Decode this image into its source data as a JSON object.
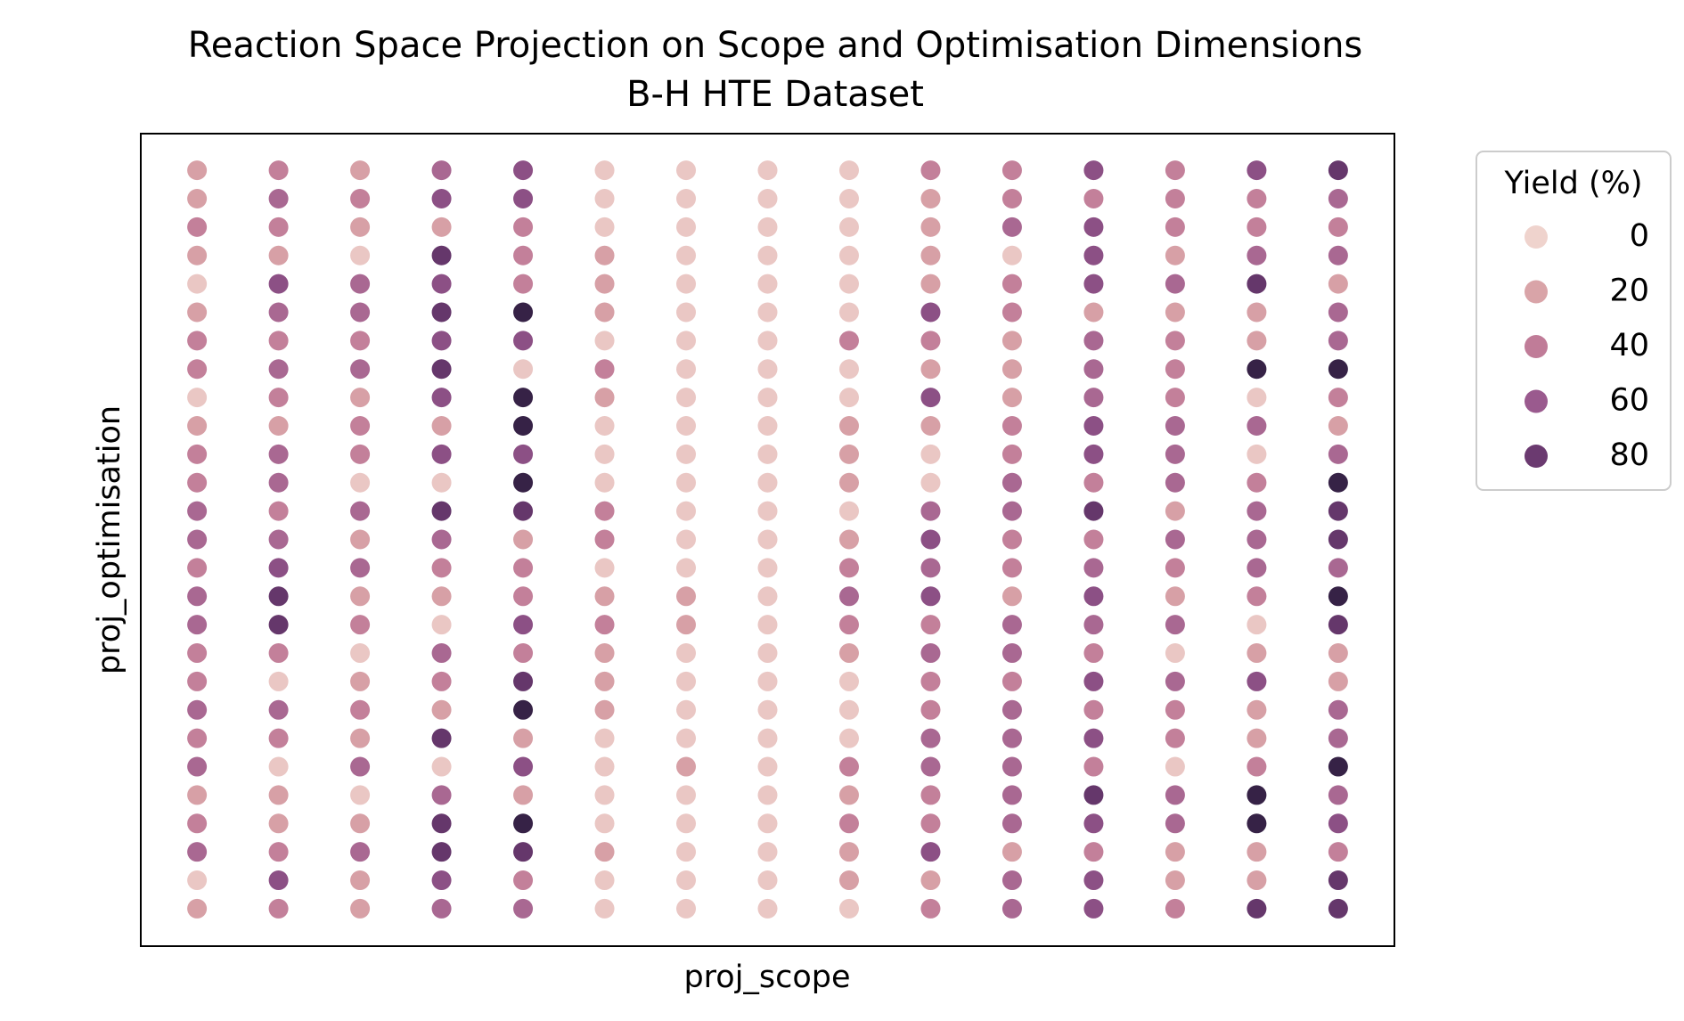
{
  "chart_data": {
    "type": "scatter",
    "title": "Reaction Space Projection on Scope and Optimisation Dimensions",
    "subtitle": "B-H HTE Dataset",
    "x_label": "proj_scope",
    "y_label": "proj_optimisation",
    "xlim": [
      0.31,
      15.69
    ],
    "ylim": [
      -0.32,
      28.29
    ],
    "grid": false,
    "legend": {
      "title": "Yield (%)",
      "position": "outside-upper-right",
      "entries": [
        0,
        20,
        40,
        60,
        80
      ]
    },
    "hue_range": [
      0,
      100
    ],
    "palette": [
      "#efd3cd",
      "#d9a4a8",
      "#c07c98",
      "#9a5a8e",
      "#6b3a70",
      "#2d1e3e"
    ],
    "x": [
      1,
      1,
      1,
      1,
      1,
      1,
      1,
      1,
      1,
      1,
      1,
      1,
      1,
      1,
      1,
      1,
      1,
      1,
      1,
      1,
      1,
      1,
      1,
      1,
      1,
      1,
      1,
      2,
      2,
      2,
      2,
      2,
      2,
      2,
      2,
      2,
      2,
      2,
      2,
      2,
      2,
      2,
      2,
      2,
      2,
      2,
      2,
      2,
      2,
      2,
      2,
      2,
      2,
      2,
      3,
      3,
      3,
      3,
      3,
      3,
      3,
      3,
      3,
      3,
      3,
      3,
      3,
      3,
      3,
      3,
      3,
      3,
      3,
      3,
      3,
      3,
      3,
      3,
      3,
      3,
      3,
      4,
      4,
      4,
      4,
      4,
      4,
      4,
      4,
      4,
      4,
      4,
      4,
      4,
      4,
      4,
      4,
      4,
      4,
      4,
      4,
      4,
      4,
      4,
      4,
      4,
      4,
      4,
      5,
      5,
      5,
      5,
      5,
      5,
      5,
      5,
      5,
      5,
      5,
      5,
      5,
      5,
      5,
      5,
      5,
      5,
      5,
      5,
      5,
      5,
      5,
      5,
      5,
      5,
      5,
      6,
      6,
      6,
      6,
      6,
      6,
      6,
      6,
      6,
      6,
      6,
      6,
      6,
      6,
      6,
      6,
      6,
      6,
      6,
      6,
      6,
      6,
      6,
      6,
      6,
      6,
      6,
      7,
      7,
      7,
      7,
      7,
      7,
      7,
      7,
      7,
      7,
      7,
      7,
      7,
      7,
      7,
      7,
      7,
      7,
      7,
      7,
      7,
      7,
      7,
      7,
      7,
      7,
      7,
      8,
      8,
      8,
      8,
      8,
      8,
      8,
      8,
      8,
      8,
      8,
      8,
      8,
      8,
      8,
      8,
      8,
      8,
      8,
      8,
      8,
      8,
      8,
      8,
      8,
      8,
      8,
      9,
      9,
      9,
      9,
      9,
      9,
      9,
      9,
      9,
      9,
      9,
      9,
      9,
      9,
      9,
      9,
      9,
      9,
      9,
      9,
      9,
      9,
      9,
      9,
      9,
      9,
      9,
      10,
      10,
      10,
      10,
      10,
      10,
      10,
      10,
      10,
      10,
      10,
      10,
      10,
      10,
      10,
      10,
      10,
      10,
      10,
      10,
      10,
      10,
      10,
      10,
      10,
      10,
      10,
      11,
      11,
      11,
      11,
      11,
      11,
      11,
      11,
      11,
      11,
      11,
      11,
      11,
      11,
      11,
      11,
      11,
      11,
      11,
      11,
      11,
      11,
      11,
      11,
      11,
      11,
      11,
      12,
      12,
      12,
      12,
      12,
      12,
      12,
      12,
      12,
      12,
      12,
      12,
      12,
      12,
      12,
      12,
      12,
      12,
      12,
      12,
      12,
      12,
      12,
      12,
      12,
      12,
      12,
      13,
      13,
      13,
      13,
      13,
      13,
      13,
      13,
      13,
      13,
      13,
      13,
      13,
      13,
      13,
      13,
      13,
      13,
      13,
      13,
      13,
      13,
      13,
      13,
      13,
      13,
      13,
      14,
      14,
      14,
      14,
      14,
      14,
      14,
      14,
      14,
      14,
      14,
      14,
      14,
      14,
      14,
      14,
      14,
      14,
      14,
      14,
      14,
      14,
      14,
      14,
      14,
      14,
      14,
      15,
      15,
      15,
      15,
      15,
      15,
      15,
      15,
      15,
      15,
      15,
      15,
      15,
      15,
      15,
      15,
      15,
      15,
      15,
      15,
      15,
      15,
      15,
      15,
      15,
      15,
      15
    ],
    "y": [
      27,
      26,
      25,
      24,
      23,
      22,
      21,
      20,
      19,
      18,
      17,
      16,
      15,
      14,
      13,
      12,
      11,
      10,
      9,
      8,
      7,
      6,
      5,
      4,
      3,
      2,
      1,
      27,
      26,
      25,
      24,
      23,
      22,
      21,
      20,
      19,
      18,
      17,
      16,
      15,
      14,
      13,
      12,
      11,
      10,
      9,
      8,
      7,
      6,
      5,
      4,
      3,
      2,
      1,
      27,
      26,
      25,
      24,
      23,
      22,
      21,
      20,
      19,
      18,
      17,
      16,
      15,
      14,
      13,
      12,
      11,
      10,
      9,
      8,
      7,
      6,
      5,
      4,
      3,
      2,
      1,
      27,
      26,
      25,
      24,
      23,
      22,
      21,
      20,
      19,
      18,
      17,
      16,
      15,
      14,
      13,
      12,
      11,
      10,
      9,
      8,
      7,
      6,
      5,
      4,
      3,
      2,
      1,
      27,
      26,
      25,
      24,
      23,
      22,
      21,
      20,
      19,
      18,
      17,
      16,
      15,
      14,
      13,
      12,
      11,
      10,
      9,
      8,
      7,
      6,
      5,
      4,
      3,
      2,
      1,
      27,
      26,
      25,
      24,
      23,
      22,
      21,
      20,
      19,
      18,
      17,
      16,
      15,
      14,
      13,
      12,
      11,
      10,
      9,
      8,
      7,
      6,
      5,
      4,
      3,
      2,
      1,
      27,
      26,
      25,
      24,
      23,
      22,
      21,
      20,
      19,
      18,
      17,
      16,
      15,
      14,
      13,
      12,
      11,
      10,
      9,
      8,
      7,
      6,
      5,
      4,
      3,
      2,
      1,
      27,
      26,
      25,
      24,
      23,
      22,
      21,
      20,
      19,
      18,
      17,
      16,
      15,
      14,
      13,
      12,
      11,
      10,
      9,
      8,
      7,
      6,
      5,
      4,
      3,
      2,
      1,
      27,
      26,
      25,
      24,
      23,
      22,
      21,
      20,
      19,
      18,
      17,
      16,
      15,
      14,
      13,
      12,
      11,
      10,
      9,
      8,
      7,
      6,
      5,
      4,
      3,
      2,
      1,
      27,
      26,
      25,
      24,
      23,
      22,
      21,
      20,
      19,
      18,
      17,
      16,
      15,
      14,
      13,
      12,
      11,
      10,
      9,
      8,
      7,
      6,
      5,
      4,
      3,
      2,
      1,
      27,
      26,
      25,
      24,
      23,
      22,
      21,
      20,
      19,
      18,
      17,
      16,
      15,
      14,
      13,
      12,
      11,
      10,
      9,
      8,
      7,
      6,
      5,
      4,
      3,
      2,
      1,
      27,
      26,
      25,
      24,
      23,
      22,
      21,
      20,
      19,
      18,
      17,
      16,
      15,
      14,
      13,
      12,
      11,
      10,
      9,
      8,
      7,
      6,
      5,
      4,
      3,
      2,
      1,
      27,
      26,
      25,
      24,
      23,
      22,
      21,
      20,
      19,
      18,
      17,
      16,
      15,
      14,
      13,
      12,
      11,
      10,
      9,
      8,
      7,
      6,
      5,
      4,
      3,
      2,
      1,
      27,
      26,
      25,
      24,
      23,
      22,
      21,
      20,
      19,
      18,
      17,
      16,
      15,
      14,
      13,
      12,
      11,
      10,
      9,
      8,
      7,
      6,
      5,
      4,
      3,
      2,
      1,
      27,
      26,
      25,
      24,
      23,
      22,
      21,
      20,
      19,
      18,
      17,
      16,
      15,
      14,
      13,
      12,
      11,
      10,
      9,
      8,
      7,
      6,
      5,
      4,
      3,
      2,
      1
    ],
    "hue": [
      22,
      22,
      38,
      22,
      5,
      22,
      38,
      38,
      5,
      22,
      38,
      38,
      52,
      52,
      38,
      52,
      52,
      38,
      38,
      52,
      38,
      52,
      22,
      38,
      52,
      5,
      22,
      38,
      52,
      38,
      22,
      66,
      52,
      38,
      52,
      38,
      22,
      52,
      52,
      38,
      52,
      66,
      82,
      82,
      38,
      5,
      52,
      38,
      5,
      22,
      22,
      38,
      66,
      38,
      22,
      38,
      22,
      5,
      52,
      52,
      38,
      52,
      22,
      38,
      38,
      5,
      52,
      22,
      52,
      22,
      38,
      5,
      22,
      38,
      22,
      52,
      5,
      22,
      52,
      22,
      22,
      52,
      66,
      22,
      82,
      66,
      82,
      66,
      82,
      66,
      22,
      66,
      5,
      82,
      52,
      38,
      22,
      5,
      52,
      38,
      22,
      82,
      5,
      52,
      82,
      82,
      66,
      52,
      66,
      66,
      38,
      38,
      38,
      97,
      66,
      5,
      97,
      97,
      66,
      97,
      82,
      22,
      38,
      38,
      66,
      38,
      82,
      97,
      22,
      66,
      22,
      97,
      82,
      38,
      52,
      5,
      5,
      5,
      22,
      22,
      22,
      5,
      38,
      22,
      5,
      5,
      5,
      38,
      38,
      5,
      22,
      38,
      22,
      22,
      22,
      5,
      5,
      5,
      5,
      22,
      5,
      5,
      5,
      5,
      5,
      5,
      5,
      5,
      5,
      5,
      5,
      5,
      5,
      5,
      5,
      5,
      5,
      22,
      22,
      5,
      5,
      5,
      5,
      22,
      5,
      5,
      5,
      5,
      5,
      5,
      5,
      5,
      5,
      5,
      5,
      5,
      5,
      5,
      5,
      5,
      5,
      5,
      5,
      5,
      5,
      5,
      5,
      5,
      5,
      5,
      5,
      5,
      5,
      5,
      5,
      5,
      5,
      5,
      5,
      5,
      5,
      5,
      38,
      5,
      5,
      22,
      22,
      22,
      5,
      22,
      38,
      52,
      38,
      22,
      5,
      5,
      5,
      38,
      22,
      38,
      22,
      22,
      5,
      38,
      22,
      22,
      22,
      22,
      66,
      38,
      22,
      66,
      22,
      5,
      5,
      52,
      66,
      52,
      66,
      38,
      52,
      38,
      38,
      52,
      52,
      38,
      38,
      66,
      22,
      38,
      38,
      38,
      52,
      5,
      38,
      38,
      22,
      22,
      22,
      38,
      38,
      52,
      52,
      38,
      38,
      22,
      52,
      52,
      38,
      52,
      52,
      52,
      52,
      52,
      22,
      52,
      52,
      66,
      38,
      66,
      66,
      66,
      22,
      52,
      52,
      52,
      66,
      66,
      38,
      82,
      38,
      52,
      66,
      52,
      38,
      66,
      38,
      66,
      38,
      82,
      66,
      38,
      66,
      66,
      38,
      38,
      38,
      22,
      52,
      22,
      38,
      38,
      38,
      52,
      52,
      52,
      22,
      52,
      38,
      22,
      52,
      5,
      52,
      38,
      38,
      5,
      52,
      52,
      22,
      22,
      38,
      66,
      38,
      38,
      52,
      82,
      22,
      22,
      97,
      5,
      52,
      5,
      38,
      52,
      52,
      52,
      38,
      5,
      22,
      66,
      22,
      22,
      38,
      97,
      97,
      22,
      22,
      82,
      82,
      52,
      38,
      52,
      22,
      52,
      52,
      97,
      38,
      22,
      52,
      97,
      82,
      82,
      52,
      97,
      82,
      22,
      22,
      52,
      52,
      97,
      52,
      66,
      38,
      82,
      82
    ]
  }
}
